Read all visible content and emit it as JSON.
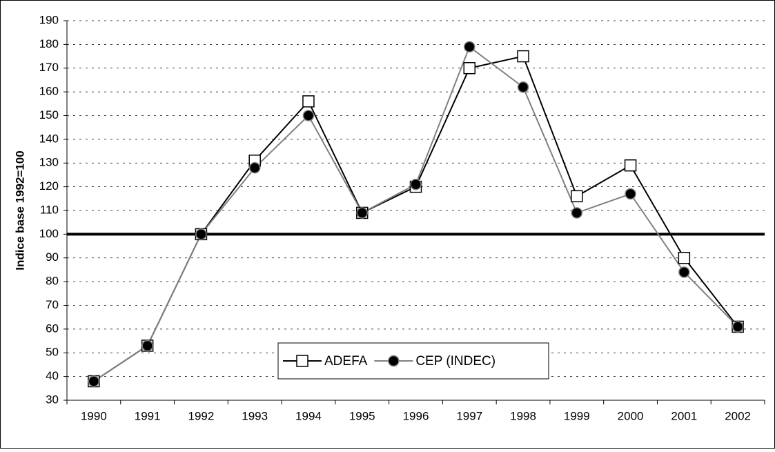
{
  "chart_data": {
    "type": "line",
    "ylabel": "Indice base 1992=100",
    "categories": [
      "1990",
      "1991",
      "1992",
      "1993",
      "1994",
      "1995",
      "1996",
      "1997",
      "1998",
      "1999",
      "2000",
      "2001",
      "2002"
    ],
    "series": [
      {
        "name": "ADEFA",
        "color": "#000000",
        "marker": "square",
        "values": [
          38,
          53,
          100,
          131,
          156,
          109,
          120,
          170,
          175,
          116,
          129,
          90,
          61
        ]
      },
      {
        "name": "CEP (INDEC)",
        "color": "#808080",
        "marker": "circle",
        "values": [
          38,
          53,
          100,
          128,
          150,
          109,
          121,
          179,
          162,
          109,
          117,
          84,
          61
        ]
      }
    ],
    "reference_line": 100,
    "ylim": [
      30,
      190
    ],
    "yticks": [
      30,
      40,
      50,
      60,
      70,
      80,
      90,
      100,
      110,
      120,
      130,
      140,
      150,
      160,
      170,
      180,
      190
    ],
    "grid": true,
    "legend": "bottom"
  }
}
